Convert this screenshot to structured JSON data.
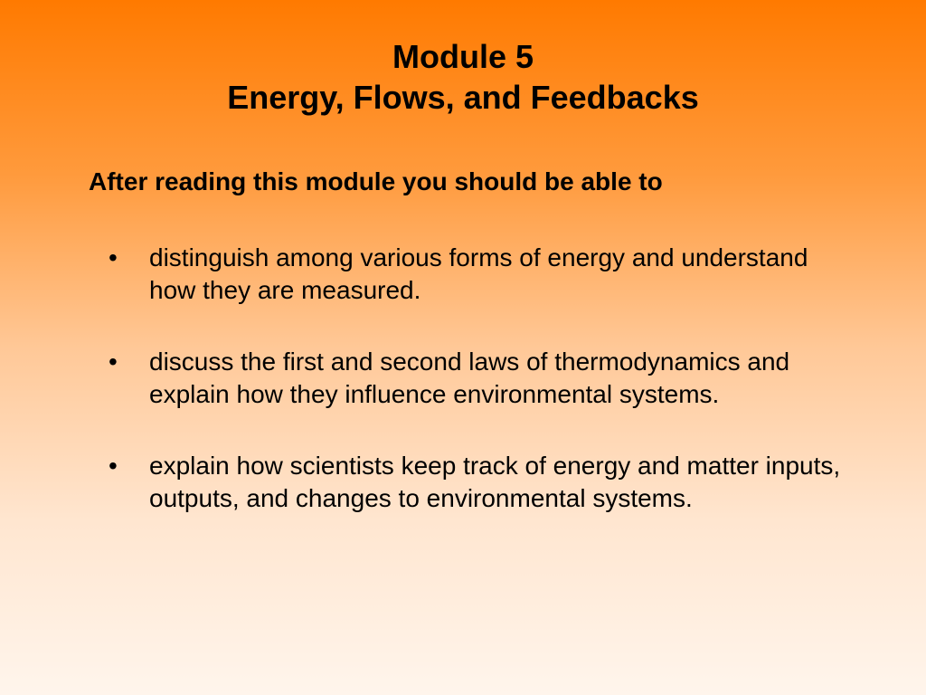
{
  "slide": {
    "background_gradient": {
      "top": "#ff7a00",
      "mid1": "#ff9a3c",
      "mid2": "#ffc897",
      "mid3": "#ffe6d0",
      "bottom": "#fff5ec"
    },
    "text_color": "#000000",
    "title_line1": "Module 5",
    "title_line2": "Energy, Flows, and Feedbacks",
    "title_fontsize": 36,
    "title_fontweight": "bold",
    "subtitle": "After reading this module you should be able to",
    "subtitle_fontsize": 28,
    "subtitle_fontweight": "bold",
    "bullet_fontsize": 28,
    "bullets": [
      "distinguish among various forms of energy and understand how they are measured.",
      "discuss the first and second laws of thermodynamics and explain how they influence environmental systems.",
      "explain how scientists keep track of energy and matter inputs, outputs, and changes to environmental systems."
    ]
  }
}
